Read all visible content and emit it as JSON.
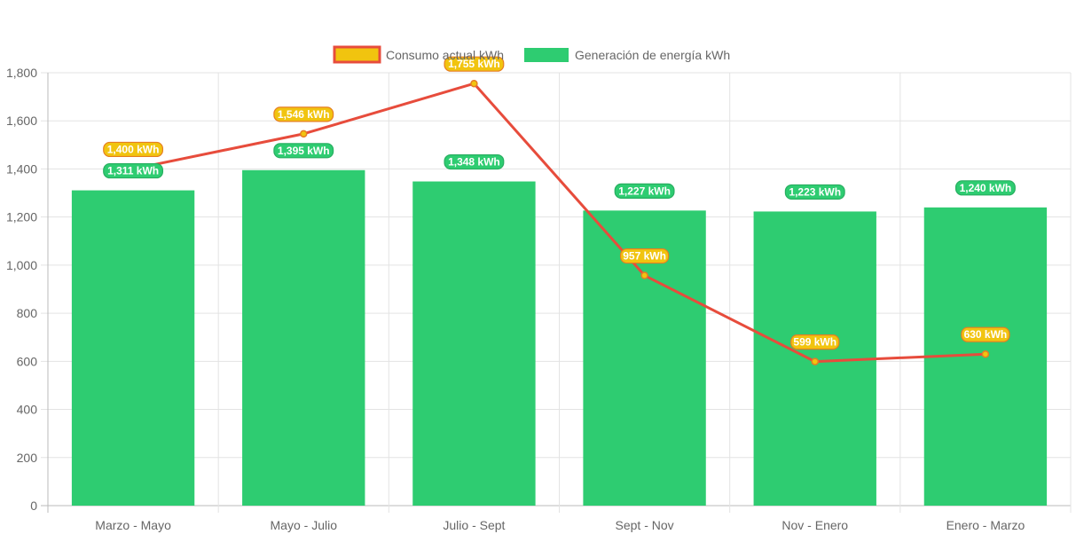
{
  "chart_data": {
    "type": "bar",
    "categories": [
      "Marzo - Mayo",
      "Mayo - Julio",
      "Julio - Sept",
      "Sept - Nov",
      "Nov - Enero",
      "Enero - Marzo"
    ],
    "series": [
      {
        "name": "Consumo actual kWh",
        "type": "line",
        "values": [
          1400,
          1546,
          1755,
          957,
          599,
          630
        ],
        "labels": [
          "1,400 kWh",
          "1,546 kWh",
          "1,755 kWh",
          "957 kWh",
          "599 kWh",
          "630 kWh"
        ],
        "color": "#e74c3c",
        "fill_color": "#f1c40f"
      },
      {
        "name": "Generación de energía kWh",
        "type": "bar",
        "values": [
          1311,
          1395,
          1348,
          1227,
          1223,
          1240
        ],
        "labels": [
          "1,311 kWh",
          "1,395 kWh",
          "1,348 kWh",
          "1,227 kWh",
          "1,223 kWh",
          "1,240 kWh"
        ],
        "color": "#2ecc71"
      }
    ],
    "y_ticks": [
      "0",
      "200",
      "400",
      "600",
      "800",
      "1,000",
      "1,200",
      "1,400",
      "1,600",
      "1,800"
    ],
    "ylim": [
      0,
      1800
    ],
    "grid": true,
    "legend_position": "top"
  }
}
